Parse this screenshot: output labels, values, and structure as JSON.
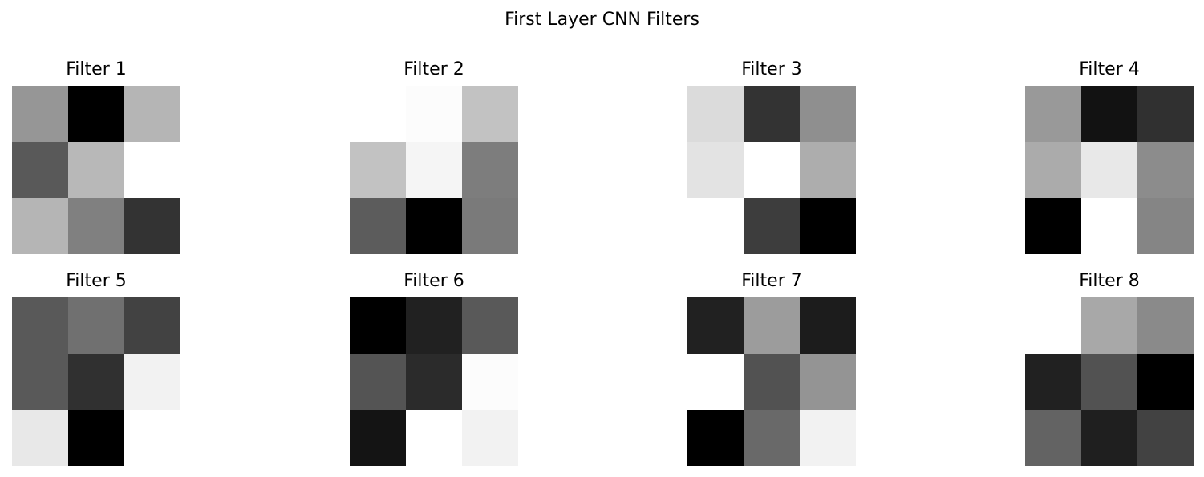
{
  "title": "First Layer CNN Filters",
  "chart_data": [
    {
      "type": "heatmap",
      "title": "Filter 1",
      "colormap": "gray",
      "axis": "off",
      "values": [
        [
          0.59,
          0.0,
          0.71
        ],
        [
          0.35,
          0.72,
          1.0
        ],
        [
          0.71,
          0.5,
          0.2
        ]
      ]
    },
    {
      "type": "heatmap",
      "title": "Filter 2",
      "colormap": "gray",
      "axis": "off",
      "values": [
        [
          1.0,
          0.99,
          0.76
        ],
        [
          0.76,
          0.96,
          0.49
        ],
        [
          0.36,
          0.0,
          0.48
        ]
      ]
    },
    {
      "type": "heatmap",
      "title": "Filter 3",
      "colormap": "gray",
      "axis": "off",
      "values": [
        [
          0.86,
          0.2,
          0.56
        ],
        [
          0.89,
          1.0,
          0.68
        ],
        [
          1.0,
          0.24,
          0.0
        ]
      ]
    },
    {
      "type": "heatmap",
      "title": "Filter 4",
      "colormap": "gray",
      "axis": "off",
      "values": [
        [
          0.6,
          0.07,
          0.19
        ],
        [
          0.67,
          0.91,
          0.55
        ],
        [
          0.0,
          1.0,
          0.52
        ]
      ]
    },
    {
      "type": "heatmap",
      "title": "Filter 5",
      "colormap": "gray",
      "axis": "off",
      "values": [
        [
          0.35,
          0.44,
          0.26
        ],
        [
          0.35,
          0.19,
          0.95
        ],
        [
          0.91,
          0.0,
          1.0
        ]
      ]
    },
    {
      "type": "heatmap",
      "title": "Filter 6",
      "colormap": "gray",
      "axis": "off",
      "values": [
        [
          0.0,
          0.13,
          0.35
        ],
        [
          0.33,
          0.17,
          0.99
        ],
        [
          0.08,
          1.0,
          0.95
        ]
      ]
    },
    {
      "type": "heatmap",
      "title": "Filter 7",
      "colormap": "gray",
      "axis": "off",
      "values": [
        [
          0.13,
          0.61,
          0.11
        ],
        [
          1.0,
          0.32,
          0.58
        ],
        [
          0.0,
          0.41,
          0.95
        ]
      ]
    },
    {
      "type": "heatmap",
      "title": "Filter 8",
      "colormap": "gray",
      "axis": "off",
      "values": [
        [
          1.0,
          0.66,
          0.54
        ],
        [
          0.13,
          0.32,
          0.0
        ],
        [
          0.39,
          0.12,
          0.26
        ]
      ]
    }
  ]
}
